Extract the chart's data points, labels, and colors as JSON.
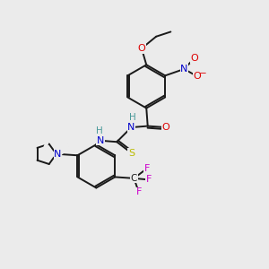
{
  "background_color": "#ebebeb",
  "bond_color": "#1a1a1a",
  "atom_colors": {
    "O": "#dd0000",
    "N": "#0000cc",
    "S": "#bbbb00",
    "F": "#cc00cc",
    "H": "#4a9a9a",
    "C": "#1a1a1a"
  }
}
